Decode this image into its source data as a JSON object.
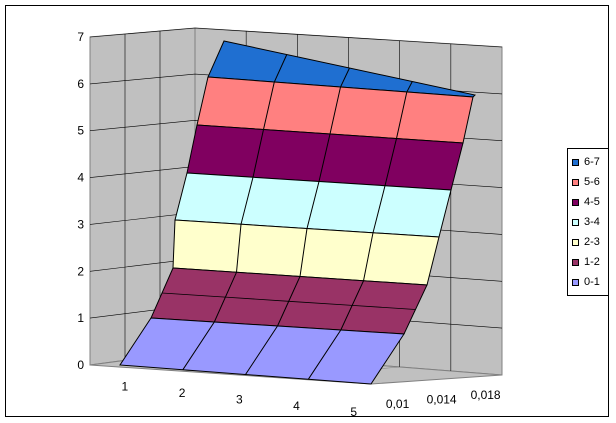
{
  "chart_data": {
    "type": "area",
    "subtype": "3d-stacked-surface",
    "title": "",
    "xlabel": "",
    "ylabel": "",
    "z_ticks": [
      0,
      1,
      2,
      3,
      4,
      5,
      6,
      7
    ],
    "x_categories": [
      "1",
      "2",
      "3",
      "4",
      "5"
    ],
    "depth_categories": [
      "0,01",
      "0,014",
      "0,018"
    ],
    "grid": true,
    "legend_position": "right",
    "series": [
      {
        "name": "6-7",
        "color": "#1f6fd1"
      },
      {
        "name": "5-6",
        "color": "#ff8080"
      },
      {
        "name": "4-5",
        "color": "#800060"
      },
      {
        "name": "3-4",
        "color": "#ccffff"
      },
      {
        "name": "2-3",
        "color": "#ffffcc"
      },
      {
        "name": "1-2",
        "color": "#993366"
      },
      {
        "name": "0-1",
        "color": "#9999ff"
      }
    ]
  }
}
